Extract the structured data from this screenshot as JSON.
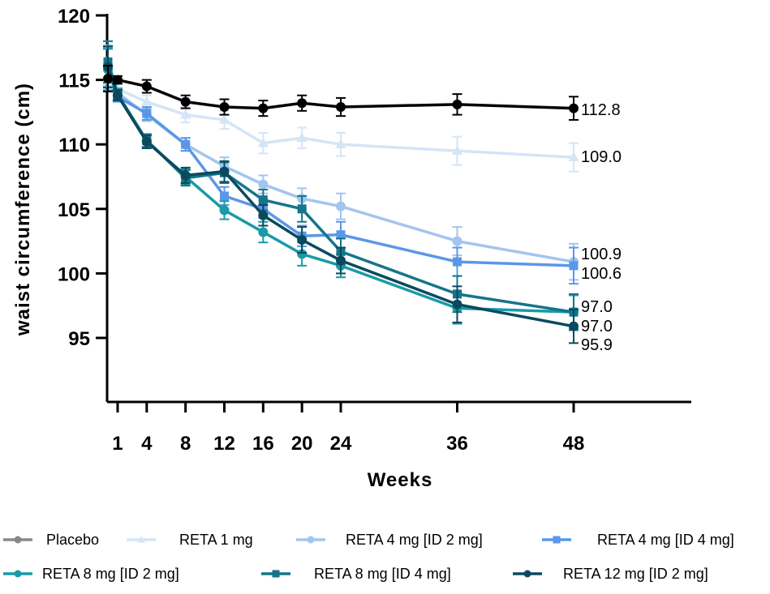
{
  "chart_data": {
    "type": "line",
    "xlabel": "Weeks",
    "ylabel": "waist circumference (cm)",
    "x": [
      0,
      1,
      4,
      8,
      12,
      16,
      20,
      24,
      36,
      48
    ],
    "x_tick_labels": [
      "1",
      "4",
      "8",
      "12",
      "16",
      "20",
      "24",
      "36",
      "48"
    ],
    "x_tick_values": [
      1,
      4,
      8,
      12,
      16,
      20,
      24,
      36,
      48
    ],
    "y_tick_labels": [
      "95",
      "100",
      "105",
      "110",
      "115",
      "120"
    ],
    "y_tick_values": [
      95,
      100,
      105,
      110,
      115,
      120
    ],
    "xlim": [
      0,
      60
    ],
    "ylim": [
      90,
      120
    ],
    "grid": false,
    "legend_position": "bottom",
    "series": [
      {
        "name": "Placebo",
        "color": "#000000",
        "marker": "circle",
        "values": [
          115.1,
          115.0,
          114.5,
          113.3,
          112.9,
          112.8,
          113.2,
          112.9,
          113.1,
          112.8
        ],
        "errors": [
          1.0,
          0.3,
          0.5,
          0.5,
          0.6,
          0.6,
          0.6,
          0.7,
          0.8,
          0.9
        ],
        "end_label": "112.8"
      },
      {
        "name": "RETA 1 mg",
        "color": "#d4e5f6",
        "marker": "triangle",
        "values": [
          116.5,
          114.3,
          113.3,
          112.3,
          111.9,
          110.1,
          110.5,
          110.0,
          109.5,
          109.0
        ],
        "errors": [
          1.5,
          0.5,
          0.5,
          0.6,
          0.7,
          0.8,
          0.8,
          0.9,
          1.1,
          1.1
        ],
        "end_label": "109.0"
      },
      {
        "name": "RETA 4 mg [ID 2 mg]",
        "color": "#a3c5ef",
        "marker": "circle",
        "values": [
          116.2,
          114.0,
          112.3,
          110.0,
          108.3,
          106.9,
          105.8,
          105.2,
          102.5,
          100.9
        ],
        "errors": [
          1.5,
          0.4,
          0.5,
          0.5,
          0.7,
          0.7,
          0.8,
          1.0,
          1.1,
          1.4
        ],
        "end_label": "100.9"
      },
      {
        "name": "RETA 4 mg [ID 4 mg]",
        "color": "#5a97e8",
        "marker": "square",
        "values": [
          116.0,
          113.7,
          112.4,
          110.0,
          106.0,
          105.0,
          102.9,
          103.0,
          100.9,
          100.6
        ],
        "errors": [
          1.5,
          0.4,
          0.5,
          0.5,
          0.7,
          0.7,
          0.8,
          1.0,
          1.1,
          1.4
        ],
        "end_label": "100.6"
      },
      {
        "name": "RETA 8 mg [ID 2 mg]",
        "color": "#199aa8",
        "marker": "circle",
        "values": [
          115.8,
          113.8,
          110.3,
          107.5,
          104.9,
          103.2,
          101.5,
          100.6,
          97.3,
          97.0
        ],
        "errors": [
          1.6,
          0.4,
          0.5,
          0.6,
          0.7,
          0.8,
          0.9,
          0.9,
          1.2,
          1.3
        ],
        "end_label": "97.0"
      },
      {
        "name": "RETA 8 mg [ID 4 mg]",
        "color": "#15758a",
        "marker": "square",
        "values": [
          116.4,
          113.9,
          110.3,
          107.4,
          107.8,
          105.7,
          105.0,
          101.7,
          98.4,
          97.0
        ],
        "errors": [
          1.6,
          0.4,
          0.5,
          0.6,
          0.8,
          0.8,
          1.0,
          1.0,
          1.4,
          1.4
        ],
        "end_label": "97.0"
      },
      {
        "name": "RETA 12 mg [ID 2 mg]",
        "color": "#0b4a5e",
        "marker": "circle",
        "values": [
          116.0,
          113.8,
          110.2,
          107.6,
          107.9,
          104.5,
          102.6,
          101.0,
          97.6,
          95.9
        ],
        "errors": [
          1.6,
          0.4,
          0.5,
          0.6,
          0.8,
          0.8,
          1.0,
          1.0,
          1.4,
          1.3
        ],
        "end_label": "95.9"
      }
    ]
  }
}
